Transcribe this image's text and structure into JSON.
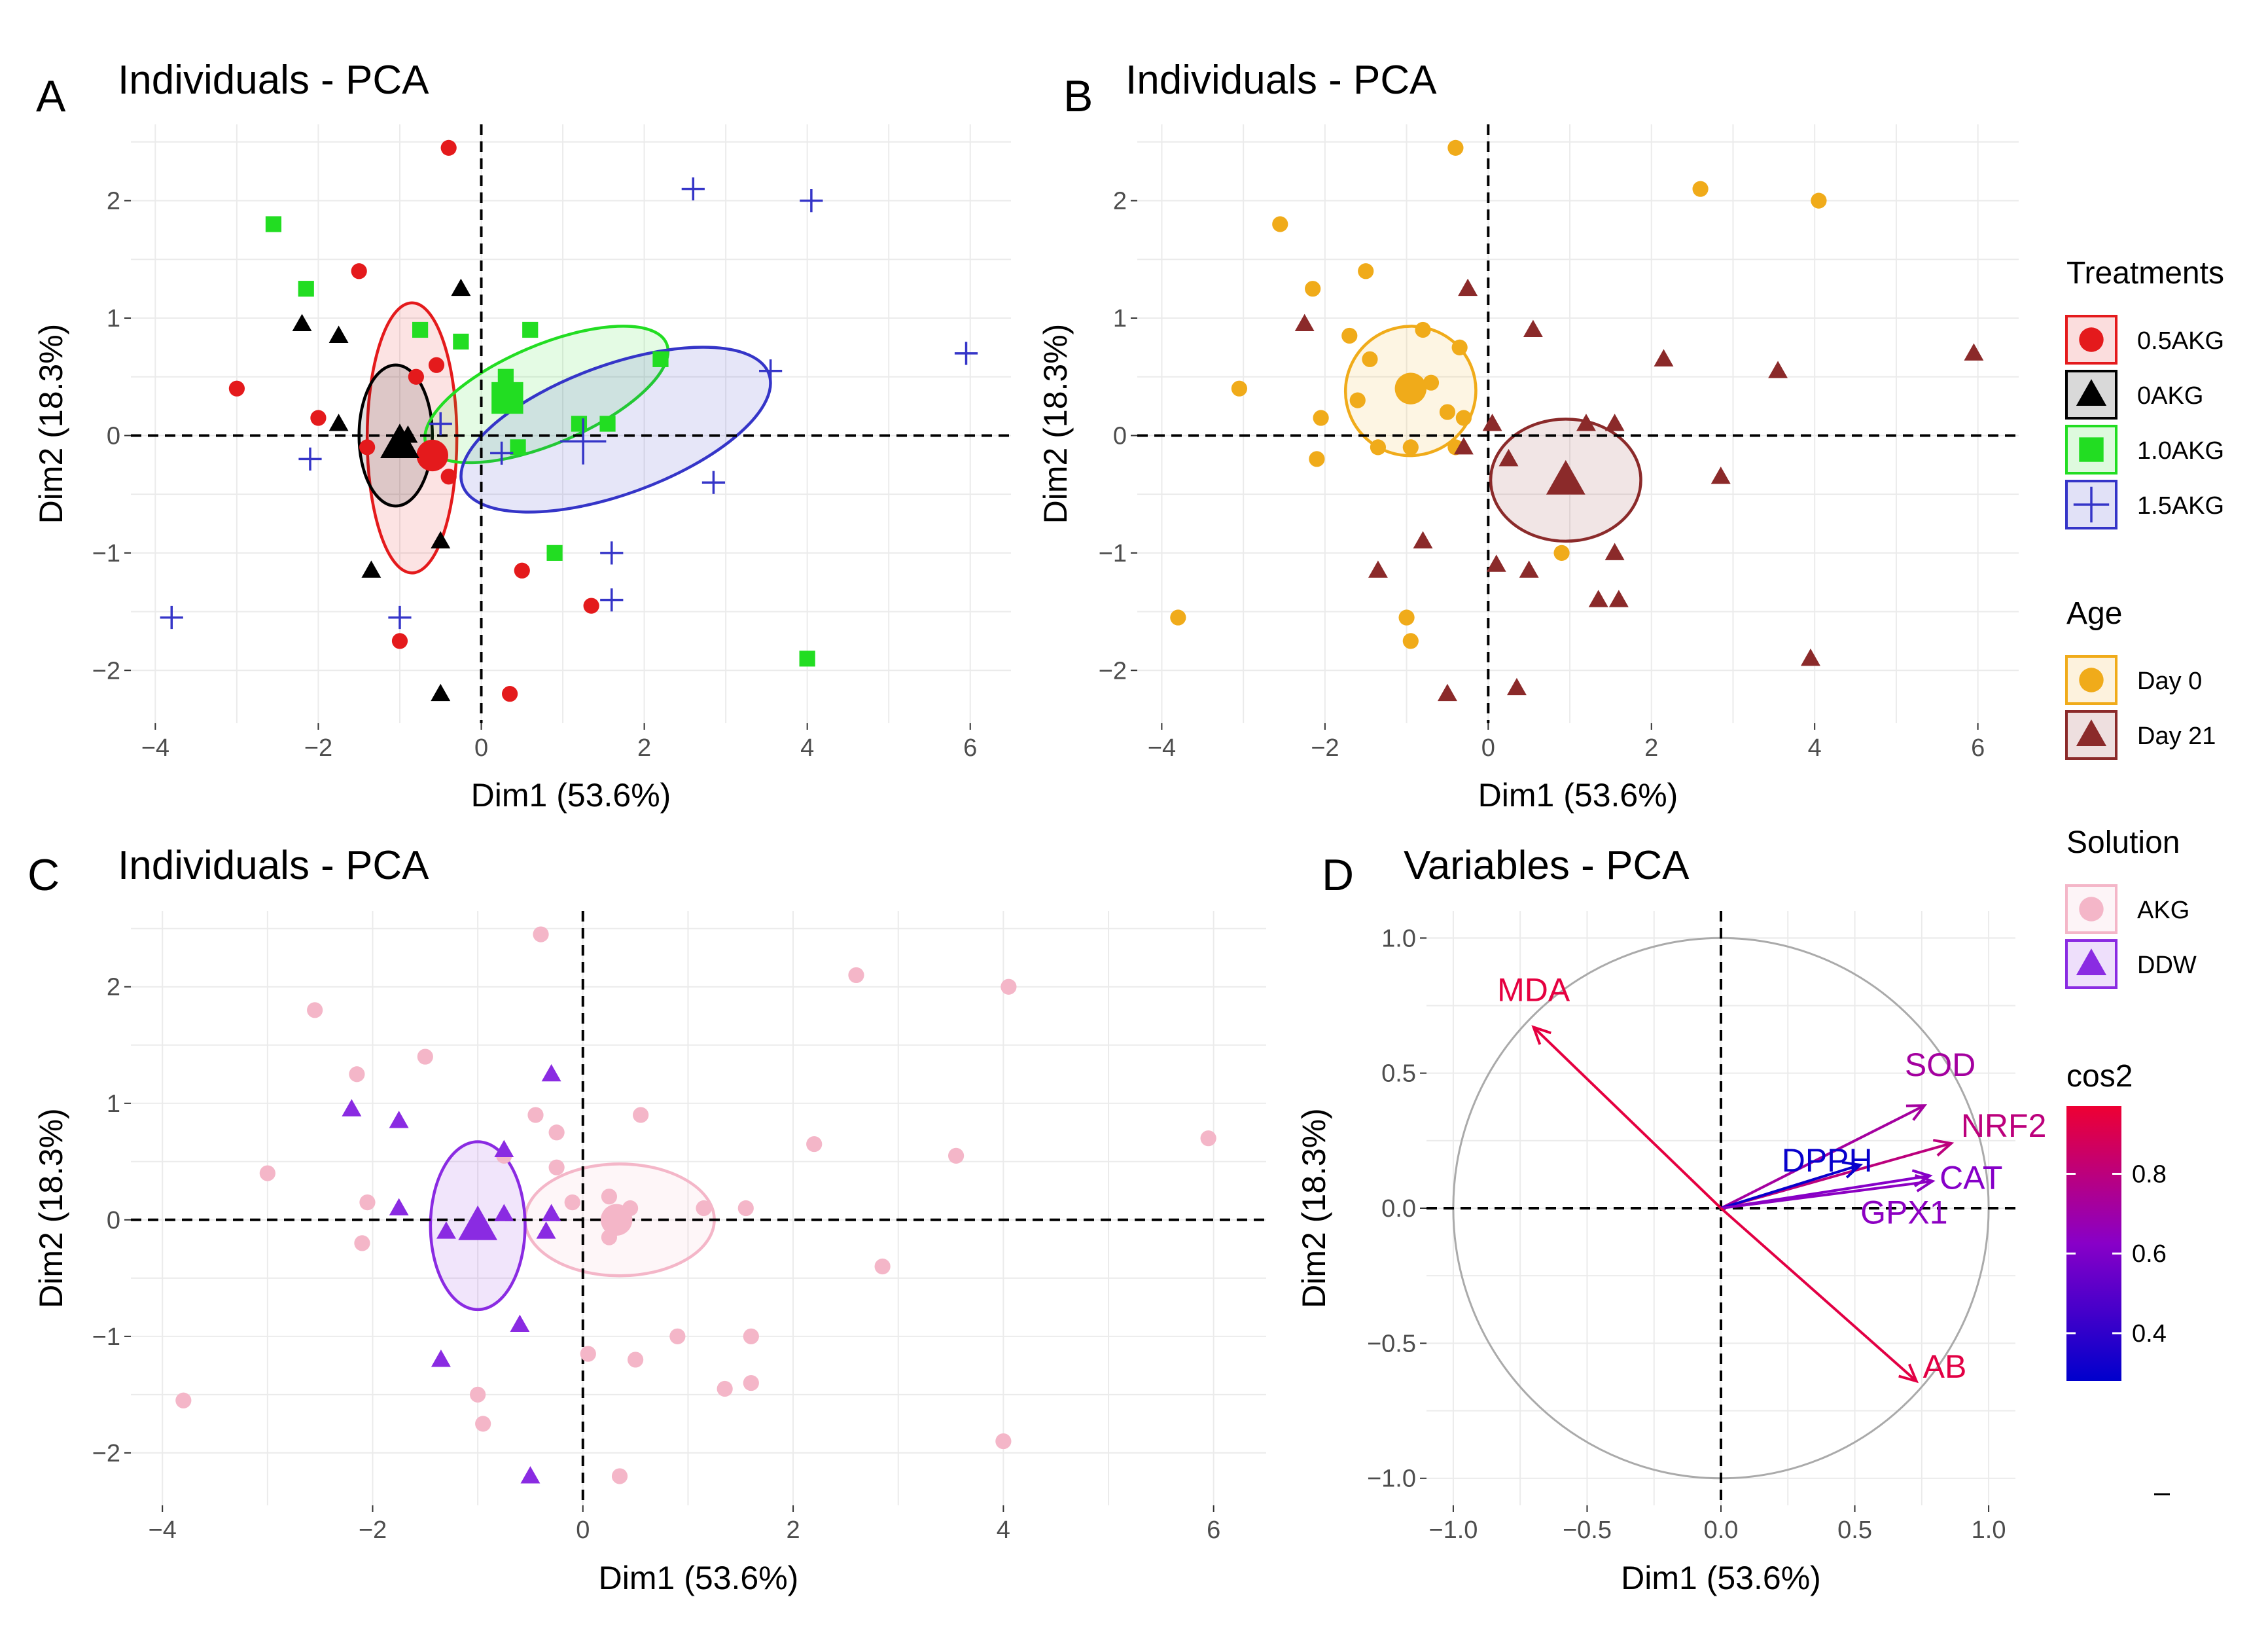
{
  "figure": {
    "colors": {
      "r05": "#e41a1c",
      "r0": "#000000",
      "r10": "#22dd22",
      "r15": "#3535c8",
      "day0": "#f0ab1a",
      "day21": "#8b2a2a",
      "akg": "#f4b6c8",
      "ddw": "#8a2be2"
    }
  },
  "panels": {
    "A": {
      "letter": "A",
      "title": "Individuals - PCA",
      "xlabel": "Dim1 (53.6%)",
      "ylabel": "Dim2 (18.3%)",
      "xticks": [
        "−4",
        "−2",
        "0",
        "2",
        "4",
        "6"
      ],
      "yticks": [
        "−2",
        "−1",
        "0",
        "1",
        "2"
      ]
    },
    "B": {
      "letter": "B",
      "title": "Individuals - PCA",
      "xlabel": "Dim1 (53.6%)",
      "ylabel": "Dim2 (18.3%)",
      "xticks": [
        "−4",
        "−2",
        "0",
        "2",
        "4",
        "6"
      ],
      "yticks": [
        "−2",
        "−1",
        "0",
        "1",
        "2"
      ]
    },
    "C": {
      "letter": "C",
      "title": "Individuals - PCA",
      "xlabel": "Dim1 (53.6%)",
      "ylabel": "Dim2 (18.3%)",
      "xticks": [
        "−4",
        "−2",
        "0",
        "2",
        "4",
        "6"
      ],
      "yticks": [
        "−2",
        "−1",
        "0",
        "1",
        "2"
      ]
    },
    "D": {
      "letter": "D",
      "title": "Variables - PCA",
      "xlabel": "Dim1 (53.6%)",
      "ylabel": "Dim2 (18.3%)",
      "xticks": [
        "−1.0",
        "−0.5",
        "0.0",
        "0.5",
        "1.0"
      ],
      "yticks": [
        "−1.0",
        "−0.5",
        "0.0",
        "0.5",
        "1.0"
      ]
    }
  },
  "legends": {
    "treatments": {
      "title": "Treatments",
      "items": [
        "0.5AKG",
        "0AKG",
        "1.0AKG",
        "1.5AKG"
      ]
    },
    "age": {
      "title": "Age",
      "items": [
        "Day 0",
        "Day 21"
      ]
    },
    "solution": {
      "title": "Solution",
      "items": [
        "AKG",
        "DDW"
      ]
    },
    "cos2": {
      "title": "cos2",
      "ticks": [
        "0.8",
        "0.6",
        "0.4"
      ],
      "tick_values": [
        0.8,
        0.6,
        0.4
      ],
      "range": [
        0.28,
        0.97
      ]
    }
  },
  "chart_data": [
    {
      "panel": "A",
      "type": "scatter",
      "title": "Individuals - PCA",
      "xlabel": "Dim1 (53.6%)",
      "ylabel": "Dim2 (18.3%)",
      "xlim": [
        -4.3,
        6.5
      ],
      "ylim": [
        -2.45,
        2.65
      ],
      "series": [
        {
          "name": "0.5AKG",
          "marker": "circle",
          "points": [
            [
              -3.0,
              0.4
            ],
            [
              -2.0,
              0.15
            ],
            [
              -1.5,
              1.4
            ],
            [
              -0.4,
              2.45
            ],
            [
              -1.4,
              -0.1
            ],
            [
              -1.0,
              -1.75
            ],
            [
              0.5,
              -1.15
            ],
            [
              1.35,
              -1.45
            ],
            [
              0.35,
              -2.2
            ],
            [
              -0.4,
              -0.35
            ],
            [
              -0.55,
              0.6
            ],
            [
              -0.8,
              0.5
            ]
          ],
          "centroid": [
            -0.6,
            -0.17
          ],
          "ellipse": {
            "cx": -0.85,
            "cy": -0.02,
            "rx": 0.55,
            "ry": 1.15,
            "angle": 0
          }
        },
        {
          "name": "0AKG",
          "marker": "triangle",
          "points": [
            [
              -2.2,
              0.95
            ],
            [
              -1.75,
              0.85
            ],
            [
              -1.75,
              0.1
            ],
            [
              -0.25,
              1.25
            ],
            [
              -1.35,
              -1.15
            ],
            [
              -0.5,
              -0.9
            ],
            [
              -0.5,
              -2.2
            ],
            [
              -0.9,
              0.0
            ]
          ],
          "centroid": [
            -1.0,
            -0.07
          ],
          "ellipse": {
            "cx": -1.05,
            "cy": 0.0,
            "rx": 0.45,
            "ry": 0.6,
            "angle": 0
          }
        },
        {
          "name": "1.0AKG",
          "marker": "square",
          "points": [
            [
              -2.55,
              1.8
            ],
            [
              -2.15,
              1.25
            ],
            [
              -0.75,
              0.9
            ],
            [
              -0.25,
              0.8
            ],
            [
              0.6,
              0.9
            ],
            [
              0.3,
              0.5
            ],
            [
              0.45,
              -0.1
            ],
            [
              1.2,
              0.1
            ],
            [
              1.55,
              0.1
            ],
            [
              2.2,
              0.65
            ],
            [
              0.9,
              -1.0
            ],
            [
              4.0,
              -1.9
            ]
          ],
          "centroid": [
            0.32,
            0.32
          ],
          "ellipse": {
            "cx": 0.8,
            "cy": 0.35,
            "rx": 1.6,
            "ry": 0.42,
            "angle": -23
          }
        },
        {
          "name": "1.5AKG",
          "marker": "plus",
          "points": [
            [
              -3.8,
              -1.55
            ],
            [
              -2.1,
              -0.2
            ],
            [
              -1.0,
              -1.55
            ],
            [
              -0.5,
              0.1
            ],
            [
              0.25,
              -0.15
            ],
            [
              1.6,
              -1.0
            ],
            [
              1.6,
              -1.4
            ],
            [
              2.85,
              -0.4
            ],
            [
              3.55,
              0.55
            ],
            [
              2.6,
              2.1
            ],
            [
              4.05,
              2.0
            ],
            [
              5.95,
              0.7
            ]
          ],
          "centroid": [
            1.25,
            -0.05
          ],
          "ellipse": {
            "cx": 1.65,
            "cy": 0.05,
            "rx": 2.0,
            "ry": 0.55,
            "angle": -20
          }
        }
      ]
    },
    {
      "panel": "B",
      "type": "scatter",
      "title": "Individuals - PCA",
      "xlabel": "Dim1 (53.6%)",
      "ylabel": "Dim2 (18.3%)",
      "xlim": [
        -4.3,
        6.5
      ],
      "ylim": [
        -2.45,
        2.65
      ],
      "series": [
        {
          "name": "Day 0",
          "marker": "circle",
          "points": [
            [
              -3.05,
              0.4
            ],
            [
              -2.55,
              1.8
            ],
            [
              -2.15,
              1.25
            ],
            [
              -1.7,
              0.85
            ],
            [
              -1.5,
              1.4
            ],
            [
              -2.05,
              0.15
            ],
            [
              -2.1,
              -0.2
            ],
            [
              -1.45,
              0.65
            ],
            [
              -1.35,
              -0.1
            ],
            [
              -0.95,
              -0.1
            ],
            [
              -0.7,
              0.45
            ],
            [
              -0.5,
              0.2
            ],
            [
              -0.35,
              0.75
            ],
            [
              -0.3,
              0.15
            ],
            [
              -0.4,
              -0.1
            ],
            [
              -0.8,
              0.9
            ],
            [
              -0.4,
              2.45
            ],
            [
              -1.0,
              -1.55
            ],
            [
              -0.95,
              -1.75
            ],
            [
              0.9,
              -1.0
            ],
            [
              2.6,
              2.1
            ],
            [
              4.05,
              2.0
            ],
            [
              -3.8,
              -1.55
            ],
            [
              -1.6,
              0.3
            ]
          ],
          "centroid": [
            -0.95,
            0.4
          ],
          "ellipse": {
            "cx": -0.95,
            "cy": 0.38,
            "rx": 0.8,
            "ry": 0.55,
            "angle": -22
          }
        },
        {
          "name": "Day 21",
          "marker": "triangle",
          "points": [
            [
              -2.25,
              0.95
            ],
            [
              -0.25,
              1.25
            ],
            [
              -0.8,
              -0.9
            ],
            [
              -1.35,
              -1.15
            ],
            [
              -0.5,
              -2.2
            ],
            [
              0.05,
              0.1
            ],
            [
              0.1,
              -1.1
            ],
            [
              0.25,
              -0.2
            ],
            [
              0.5,
              -1.15
            ],
            [
              0.55,
              0.9
            ],
            [
              1.2,
              0.1
            ],
            [
              1.55,
              0.1
            ],
            [
              1.55,
              -1.0
            ],
            [
              1.35,
              -1.4
            ],
            [
              1.6,
              -1.4
            ],
            [
              2.15,
              0.65
            ],
            [
              2.85,
              -0.35
            ],
            [
              3.55,
              0.55
            ],
            [
              3.95,
              -1.9
            ],
            [
              5.95,
              0.7
            ],
            [
              -0.3,
              -0.1
            ],
            [
              0.35,
              -2.15
            ]
          ],
          "centroid": [
            0.95,
            -0.38
          ],
          "ellipse": {
            "cx": 0.95,
            "cy": -0.38,
            "rx": 0.92,
            "ry": 0.52,
            "angle": 0
          }
        }
      ]
    },
    {
      "panel": "C",
      "type": "scatter",
      "title": "Individuals - PCA",
      "xlabel": "Dim1 (53.6%)",
      "ylabel": "Dim2 (18.3%)",
      "xlim": [
        -4.3,
        6.5
      ],
      "ylim": [
        -2.45,
        2.65
      ],
      "series": [
        {
          "name": "AKG",
          "marker": "circle",
          "points": [
            [
              -3.8,
              -1.55
            ],
            [
              -3.0,
              0.4
            ],
            [
              -2.55,
              1.8
            ],
            [
              -2.15,
              1.25
            ],
            [
              -2.05,
              0.15
            ],
            [
              -2.1,
              -0.2
            ],
            [
              -1.5,
              1.4
            ],
            [
              -0.75,
              0.55
            ],
            [
              -0.45,
              0.9
            ],
            [
              -0.4,
              2.45
            ],
            [
              -0.25,
              0.75
            ],
            [
              -0.25,
              0.45
            ],
            [
              -0.1,
              0.15
            ],
            [
              0.25,
              0.2
            ],
            [
              0.55,
              0.9
            ],
            [
              0.45,
              0.1
            ],
            [
              1.15,
              0.1
            ],
            [
              1.55,
              0.1
            ],
            [
              2.2,
              0.65
            ],
            [
              3.55,
              0.55
            ],
            [
              2.6,
              2.1
            ],
            [
              4.05,
              2.0
            ],
            [
              5.95,
              0.7
            ],
            [
              2.85,
              -0.4
            ],
            [
              0.05,
              -1.15
            ],
            [
              0.5,
              -1.2
            ],
            [
              0.9,
              -1.0
            ],
            [
              1.35,
              -1.45
            ],
            [
              1.6,
              -1.4
            ],
            [
              1.6,
              -1.0
            ],
            [
              4.0,
              -1.9
            ],
            [
              0.35,
              -2.2
            ],
            [
              -1.0,
              -1.5
            ],
            [
              -0.95,
              -1.75
            ],
            [
              0.25,
              -0.15
            ]
          ],
          "centroid": [
            0.32,
            0.0
          ],
          "ellipse": {
            "cx": 0.35,
            "cy": 0.0,
            "rx": 0.9,
            "ry": 0.48,
            "angle": 0
          }
        },
        {
          "name": "DDW",
          "marker": "triangle",
          "points": [
            [
              -2.2,
              0.95
            ],
            [
              -1.75,
              0.85
            ],
            [
              -0.3,
              1.25
            ],
            [
              -0.75,
              0.6
            ],
            [
              -1.75,
              0.1
            ],
            [
              -1.3,
              -0.1
            ],
            [
              -0.75,
              0.05
            ],
            [
              -0.3,
              0.05
            ],
            [
              -0.35,
              -0.1
            ],
            [
              -0.6,
              -0.9
            ],
            [
              -1.35,
              -1.2
            ],
            [
              -0.5,
              -2.2
            ]
          ],
          "centroid": [
            -1.0,
            -0.05
          ],
          "ellipse": {
            "cx": -1.0,
            "cy": -0.05,
            "rx": 0.45,
            "ry": 0.72,
            "angle": 0
          }
        }
      ]
    },
    {
      "panel": "D",
      "type": "vector",
      "title": "Variables - PCA",
      "xlabel": "Dim1 (53.6%)",
      "ylabel": "Dim2 (18.3%)",
      "xlim": [
        -1.1,
        1.1
      ],
      "ylim": [
        -1.1,
        1.1
      ],
      "vectors": [
        {
          "name": "MDA",
          "x": -0.7,
          "y": 0.67,
          "cos2": 0.94
        },
        {
          "name": "SOD",
          "x": 0.76,
          "y": 0.38,
          "cos2": 0.72
        },
        {
          "name": "NRF2",
          "x": 0.86,
          "y": 0.24,
          "cos2": 0.8
        },
        {
          "name": "CAT",
          "x": 0.78,
          "y": 0.12,
          "cos2": 0.62
        },
        {
          "name": "DPPH",
          "x": 0.52,
          "y": 0.16,
          "cos2": 0.3
        },
        {
          "name": "GPX1",
          "x": 0.79,
          "y": 0.1,
          "cos2": 0.64
        },
        {
          "name": "AB",
          "x": 0.73,
          "y": -0.64,
          "cos2": 0.93
        }
      ]
    }
  ]
}
